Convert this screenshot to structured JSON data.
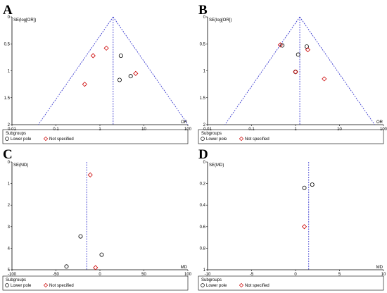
{
  "chart_data": [
    {
      "panel": "A",
      "type": "scatter",
      "x_label": "OR",
      "y_label": "SE(log[OR])",
      "x_scale": "log",
      "xlim": [
        0.01,
        100
      ],
      "ylim": [
        0,
        2
      ],
      "y_inverted": true,
      "x_ticks": [
        "0.01",
        "0.1",
        "1",
        "10",
        "100"
      ],
      "y_ticks": [
        "0",
        "0.5",
        "1",
        "1.5",
        "2"
      ],
      "pooled": 2.0,
      "funnel": true,
      "legend_title": "Subgroups",
      "series": [
        {
          "name": "Lower pole",
          "marker": "circle",
          "color": "#000000",
          "points": [
            [
              3.0,
              0.72
            ],
            [
              5.0,
              1.1
            ],
            [
              2.8,
              1.17
            ]
          ]
        },
        {
          "name": "Not specified",
          "marker": "diamond",
          "color": "#cc0000",
          "points": [
            [
              0.7,
              0.72
            ],
            [
              1.4,
              0.58
            ],
            [
              6.5,
              1.05
            ],
            [
              0.45,
              1.25
            ]
          ]
        }
      ]
    },
    {
      "panel": "B",
      "type": "scatter",
      "x_label": "OR",
      "y_label": "SE(log[OR])",
      "x_scale": "log",
      "xlim": [
        0.01,
        100
      ],
      "ylim": [
        0,
        2
      ],
      "y_inverted": true,
      "x_ticks": [
        "0.01",
        "0.1",
        "1",
        "10",
        "100"
      ],
      "y_ticks": [
        "0",
        "0.5",
        "1",
        "1.5",
        "2"
      ],
      "pooled": 1.25,
      "funnel": true,
      "legend_title": "Subgroups",
      "series": [
        {
          "name": "Lower pole",
          "marker": "circle",
          "color": "#000000",
          "points": [
            [
              1.8,
              0.55
            ],
            [
              1.15,
              0.7
            ],
            [
              1.0,
              1.02
            ],
            [
              0.5,
              0.53
            ]
          ]
        },
        {
          "name": "Not specified",
          "marker": "diamond",
          "color": "#cc0000",
          "points": [
            [
              0.45,
              0.52
            ],
            [
              1.9,
              0.61
            ],
            [
              1.0,
              1.02
            ],
            [
              4.5,
              1.15
            ]
          ]
        }
      ]
    },
    {
      "panel": "C",
      "type": "scatter",
      "x_label": "MD",
      "y_label": "SE(MD)",
      "x_scale": "linear",
      "xlim": [
        -100,
        100
      ],
      "ylim": [
        0,
        5
      ],
      "y_inverted": true,
      "x_ticks": [
        "-100",
        "-50",
        "0",
        "50",
        "100"
      ],
      "y_ticks": [
        "0",
        "1",
        "2",
        "3",
        "4",
        "5"
      ],
      "pooled": -15,
      "funnel": false,
      "legend_title": "Subgroups",
      "series": [
        {
          "name": "Lower pole",
          "marker": "circle",
          "color": "#000000",
          "points": [
            [
              -22,
              3.45
            ],
            [
              2,
              4.3
            ],
            [
              -38,
              4.85
            ]
          ]
        },
        {
          "name": "Not specified",
          "marker": "diamond",
          "color": "#cc0000",
          "points": [
            [
              -11,
              0.6
            ],
            [
              -5,
              4.9
            ]
          ]
        }
      ]
    },
    {
      "panel": "D",
      "type": "scatter",
      "x_label": "MD",
      "y_label": "SE(MD)",
      "x_scale": "linear",
      "xlim": [
        -10,
        10
      ],
      "ylim": [
        0,
        1
      ],
      "y_inverted": true,
      "x_ticks": [
        "-10",
        "-5",
        "0",
        "5",
        "10"
      ],
      "y_ticks": [
        "0",
        "0.2",
        "0.4",
        "0.6",
        "0.8",
        "1"
      ],
      "pooled": 1.5,
      "funnel": false,
      "legend_title": "Subgroups",
      "series": [
        {
          "name": "Lower pole",
          "marker": "circle",
          "color": "#000000",
          "points": [
            [
              1.9,
              0.21
            ],
            [
              1.0,
              0.24
            ]
          ]
        },
        {
          "name": "Not specified",
          "marker": "diamond",
          "color": "#cc0000",
          "points": [
            [
              1.0,
              0.6
            ]
          ]
        }
      ]
    }
  ]
}
